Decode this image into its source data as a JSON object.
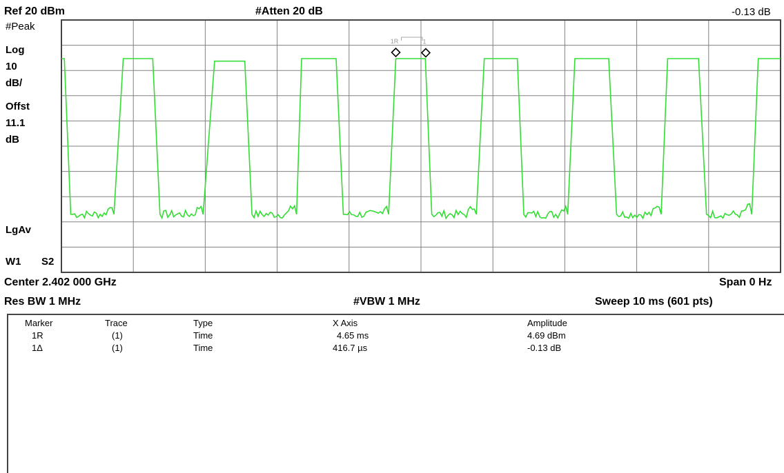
{
  "header": {
    "ref": "Ref 20 dBm",
    "atten": "#Atten 20 dB",
    "marker_readout": "-0.13 dB"
  },
  "left_labels": {
    "detector": "#Peak",
    "scale_type": "Log",
    "scale_value": "10",
    "scale_unit": "dB/",
    "offset_label": "Offst",
    "offset_value": "11.1",
    "offset_unit": "dB",
    "averaging": "LgAv",
    "trace_state_1": "W1",
    "trace_state_2": "S2"
  },
  "footer": {
    "center": "Center 2.402 000 GHz",
    "span": "Span 0 Hz",
    "res_bw": "Res BW 1 MHz",
    "vbw": "#VBW 1 MHz",
    "sweep": "Sweep 10 ms (601 pts)"
  },
  "marker_labels": {
    "ref": "1R",
    "delta": "1"
  },
  "marker_table": {
    "headers": [
      "Marker",
      "Trace",
      "Type",
      "X Axis",
      "Amplitude"
    ],
    "rows": [
      [
        "1R",
        "(1)",
        "Time",
        "4.65 ms",
        "4.69 dBm"
      ],
      [
        "1Δ",
        "(1)",
        "Time",
        "416.7 µs",
        "-0.13 dB"
      ]
    ]
  },
  "colors": {
    "trace": "#33dd33",
    "grid": "#808080",
    "frame": "#444444"
  },
  "chart_data": {
    "type": "line",
    "x_unit": "ms",
    "xlim": [
      0,
      10
    ],
    "ylim": [
      -80,
      20
    ],
    "y_unit": "dBm",
    "grid": true,
    "series": [
      {
        "x": [
          0,
          0.04,
          0.13,
          0.73,
          0.86,
          1.27,
          1.37,
          1.97,
          2.13,
          2.55,
          2.65,
          3.27,
          3.34,
          3.82,
          3.92,
          4.55,
          4.65,
          5.06,
          5.15,
          5.77,
          5.88,
          6.34,
          6.43,
          7.04,
          7.14,
          7.61,
          7.72,
          8.34,
          8.43,
          8.86,
          8.97,
          9.6,
          9.69,
          10
        ],
        "y": [
          4.7,
          4.7,
          -57,
          -57,
          4.7,
          4.7,
          -57,
          -57,
          3.7,
          3.7,
          -57,
          -57,
          4.7,
          4.7,
          -57,
          -57,
          4.7,
          4.7,
          -57,
          -57,
          4.7,
          4.7,
          -57,
          -57,
          4.7,
          4.7,
          -57,
          -57,
          4.7,
          4.7,
          -57,
          -57,
          4.7,
          4.7
        ]
      }
    ]
  }
}
